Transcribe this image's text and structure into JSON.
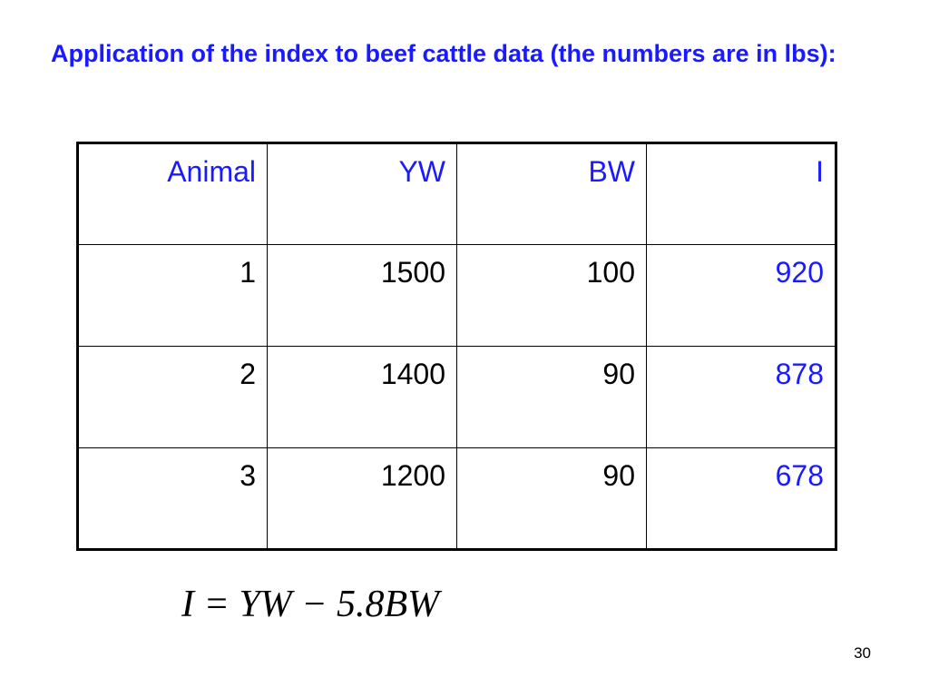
{
  "title": "Application of the index to beef cattle data (the numbers are in lbs):",
  "table": {
    "headers": [
      "Animal",
      "YW",
      "BW",
      "I"
    ],
    "rows": [
      [
        "1",
        "1500",
        "100",
        "920"
      ],
      [
        "2",
        "1400",
        "90",
        "878"
      ],
      [
        "3",
        "1200",
        "90",
        "678"
      ]
    ]
  },
  "formula": "I = YW − 5.8BW",
  "page_number": "30",
  "colors": {
    "accent": "#1a1aff",
    "text": "#000000",
    "background": "#ffffff"
  }
}
